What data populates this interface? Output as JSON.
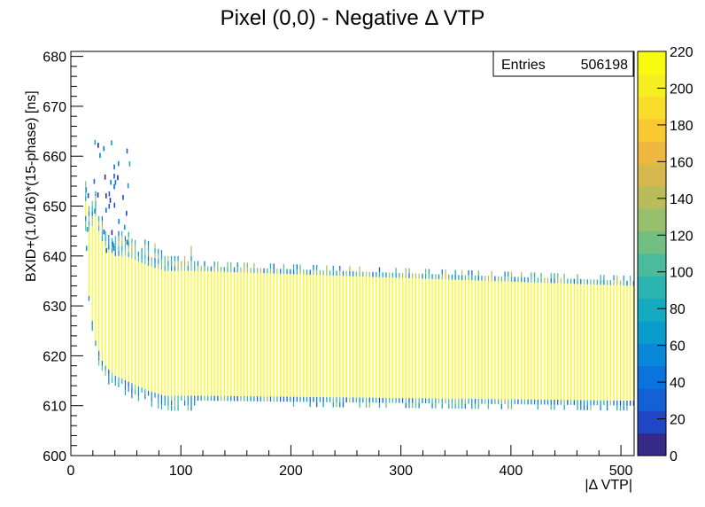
{
  "chart_data": {
    "type": "heatmap",
    "title": "Pixel (0,0) - Negative  Δ VTP",
    "xlabel": "|Δ VTP|",
    "ylabel": "BXID+(1.0/16)*(15-phase)  [ns]",
    "xlim": [
      0,
      512
    ],
    "ylim": [
      600,
      681
    ],
    "x_ticks": [
      "0",
      "100",
      "200",
      "300",
      "400",
      "500"
    ],
    "y_ticks": [
      "600",
      "610",
      "620",
      "630",
      "640",
      "650",
      "660",
      "670",
      "680"
    ],
    "z_range": [
      0,
      220
    ],
    "z_ticks": [
      "0",
      "20",
      "40",
      "60",
      "80",
      "100",
      "120",
      "140",
      "160",
      "180",
      "200",
      "220"
    ],
    "palette": [
      "#352a87",
      "#2046c4",
      "#1460d6",
      "#0b73dc",
      "#0987d8",
      "#0a9ccb",
      "#14abc0",
      "#29b4b0",
      "#4bbb9b",
      "#71bf83",
      "#98bf6c",
      "#b9bc5b",
      "#d7b84c",
      "#eeb83e",
      "#f9c932",
      "#f9dd2a",
      "#f5ef22",
      "#f9fb0e"
    ],
    "stats": {
      "label": "Entries",
      "value": "506198"
    },
    "description_regions": [
      {
        "x_from": 13,
        "x_to": 115,
        "core": [
          [
            13,
            648,
            651
          ],
          [
            16,
            632,
            645
          ],
          [
            19,
            627,
            646
          ],
          [
            22,
            623,
            648
          ],
          [
            25,
            621,
            645
          ],
          [
            28,
            619,
            643
          ],
          [
            31,
            618,
            642
          ],
          [
            35,
            617,
            641
          ],
          [
            40,
            616,
            640
          ],
          [
            50,
            615,
            640
          ],
          [
            60,
            614,
            639
          ],
          [
            70,
            613,
            638
          ],
          [
            85,
            612,
            637
          ],
          [
            100,
            612,
            637
          ],
          [
            115,
            612,
            637
          ]
        ]
      },
      {
        "x_from": 115,
        "x_to": 512,
        "core": [
          [
            115,
            612,
            637
          ],
          [
            512,
            611,
            634
          ]
        ]
      }
    ]
  }
}
